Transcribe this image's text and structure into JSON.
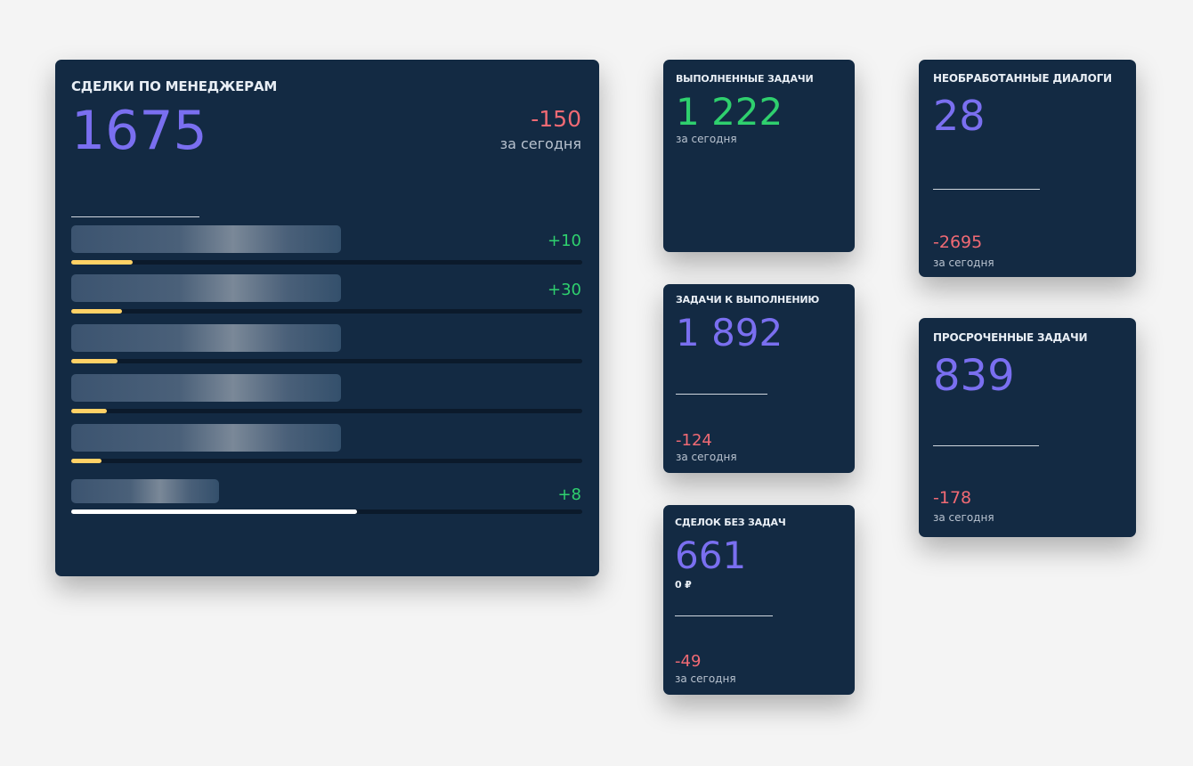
{
  "managers_card": {
    "title": "СДЕЛКИ ПО МЕНЕДЖЕРАМ",
    "value": "1675",
    "delta": "-150",
    "delta_label": "за сегодня",
    "rows": [
      {
        "delta": "+10",
        "progress": 0.12
      },
      {
        "delta": "+30",
        "progress": 0.1
      },
      {
        "delta": "",
        "progress": 0.09
      },
      {
        "delta": "",
        "progress": 0.07
      },
      {
        "delta": "",
        "progress": 0.06
      },
      {
        "delta": "+8",
        "progress": 0.56
      }
    ]
  },
  "completed": {
    "title": "ВЫПОЛНЕННЫЕ ЗАДАЧИ",
    "value": "1 222",
    "label": "за сегодня"
  },
  "todo": {
    "title": "ЗАДАЧИ К ВЫПОЛНЕНИЮ",
    "value": "1 892",
    "delta": "-124",
    "label": "за сегодня"
  },
  "no_tasks": {
    "title": "СДЕЛОК БЕЗ ЗАДАЧ",
    "value": "661",
    "amount": "0 ₽",
    "delta": "-49",
    "label": "за сегодня"
  },
  "dialogs": {
    "title": "НЕОБРАБОТАННЫЕ ДИАЛОГИ",
    "value": "28",
    "delta": "-2695",
    "label": "за сегодня"
  },
  "overdue": {
    "title": "ПРОСРОЧЕННЫЕ ЗАДАЧИ",
    "value": "839",
    "delta": "-178",
    "label": "за сегодня"
  },
  "colors": {
    "accent": "#7a6ff0",
    "positive": "#2fd06e",
    "negative": "#f06a74",
    "bar": "#ffd166",
    "card": "#132a43"
  }
}
